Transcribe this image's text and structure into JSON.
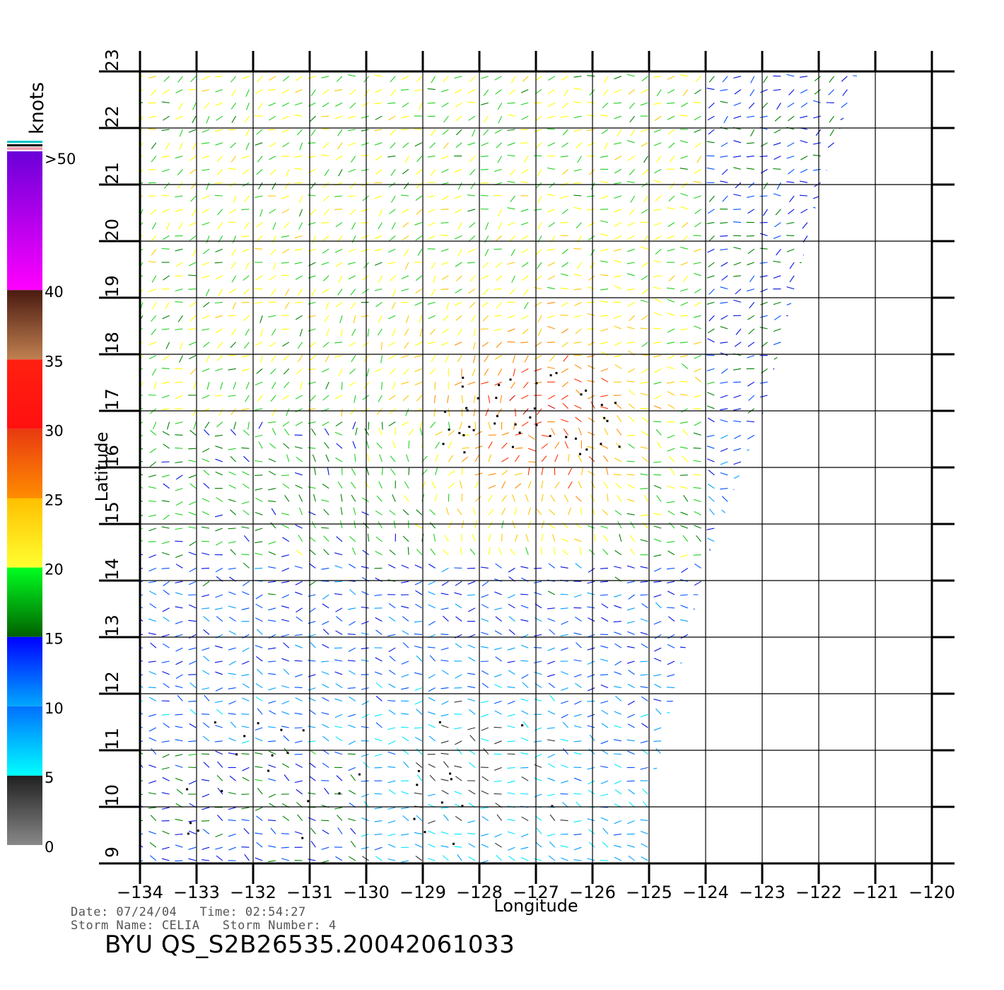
{
  "map": {
    "x_axis": {
      "label": "Longitude",
      "min": -134,
      "max": -120,
      "ticks": [
        "−134",
        "−133",
        "−132",
        "−131",
        "−130",
        "−129",
        "−128",
        "−127",
        "−126",
        "−125",
        "−124",
        "−123",
        "−122",
        "−121",
        "−120"
      ]
    },
    "y_axis": {
      "label": "Latitude",
      "min": 9,
      "max": 23,
      "ticks": [
        "9",
        "10",
        "11",
        "12",
        "13",
        "14",
        "15",
        "16",
        "17",
        "18",
        "19",
        "20",
        "21",
        "22",
        "23"
      ]
    },
    "grid": true,
    "swath_lon_lat_outline": [
      [
        -134,
        9
      ],
      [
        -125,
        9
      ],
      [
        -125,
        10.1
      ],
      [
        -124,
        14.3
      ],
      [
        -123,
        16.9
      ],
      [
        -122,
        20.8
      ],
      [
        -121.3,
        23
      ],
      [
        -134,
        23
      ]
    ],
    "storm_center_lon_lat": [
      -126.9,
      16.6
    ],
    "low_wind_center_lon_lat": [
      -128,
      11
    ]
  },
  "colorbar": {
    "unit": "knots",
    "top_label": ">50",
    "levels": [
      {
        "label": "40",
        "value": 40,
        "colors": [
          "#ff00ff",
          "#6a00d8"
        ]
      },
      {
        "label": "35",
        "value": 35,
        "colors": [
          "#c08050",
          "#4a1a10"
        ]
      },
      {
        "label": "30",
        "value": 30,
        "colors": [
          "#ff1010",
          "#ff2010"
        ]
      },
      {
        "label": "25",
        "value": 25,
        "colors": [
          "#ff8c00",
          "#e83a10"
        ]
      },
      {
        "label": "20",
        "value": 20,
        "colors": [
          "#ffff30",
          "#ffc000"
        ]
      },
      {
        "label": "15",
        "value": 15,
        "colors": [
          "#006000",
          "#00ff20"
        ]
      },
      {
        "label": "10",
        "value": 10,
        "colors": [
          "#00a8ff",
          "#0000ff"
        ]
      },
      {
        "label": "5",
        "value": 5,
        "colors": [
          "#00ffff",
          "#0070ff"
        ]
      },
      {
        "label": "0",
        "value": 0,
        "colors": [
          "#888888",
          "#202020"
        ]
      }
    ]
  },
  "footer": {
    "line1": "Date: 07/24/04   Time: 02:54:27",
    "line2": "Storm Name: CELIA   Storm Number: 4",
    "product": "BYU QS_S2B26535.20042061033"
  }
}
